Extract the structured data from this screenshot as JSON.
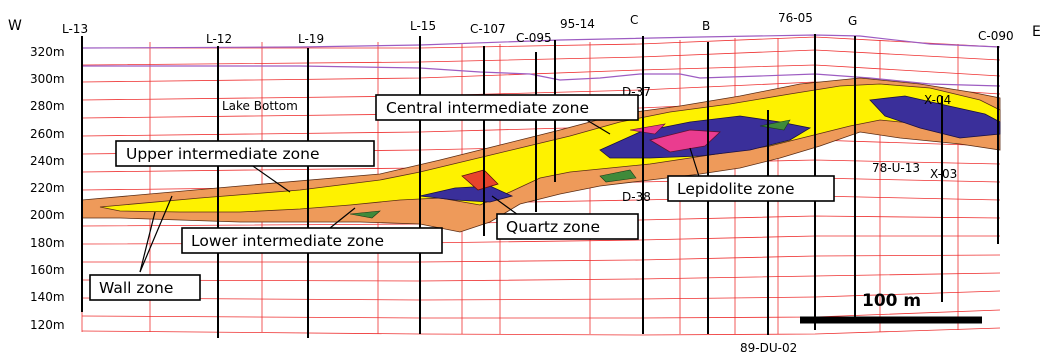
{
  "directions": {
    "west": "W",
    "east": "E"
  },
  "elevations": [
    "320m",
    "300m",
    "280m",
    "260m",
    "240m",
    "220m",
    "200m",
    "180m",
    "160m",
    "140m",
    "120m"
  ],
  "drillholes": [
    {
      "label": "L-13"
    },
    {
      "label": "L-12"
    },
    {
      "label": "L-19"
    },
    {
      "label": "L-15"
    },
    {
      "label": "C-107"
    },
    {
      "label": "C-095"
    },
    {
      "label": "95-14"
    },
    {
      "label": "C"
    },
    {
      "label": "B"
    },
    {
      "label": "76-05"
    },
    {
      "label": "G"
    },
    {
      "label": "C-090"
    }
  ],
  "minor_labels": {
    "lake_bottom": "Lake Bottom",
    "d37": "D-37",
    "d38": "D-38",
    "x04": "X-04",
    "x03": "X-03",
    "u13": "78-U-13",
    "du02": "89-DU-02"
  },
  "zones": {
    "central": "Central intermediate zone",
    "upper": "Upper intermediate zone",
    "lepidolite": "Lepidolite zone",
    "quartz": "Quartz zone",
    "lower": "Lower intermediate zone",
    "wall": "Wall zone"
  },
  "scale_bar": {
    "label": "100 m"
  },
  "colors": {
    "wall_zone": "#ee9a5a",
    "intermediate_zone": "#fef200",
    "lepidolite_zone": "#ea3c8f",
    "core_zone": "#3a2f9a",
    "quartz_zone": "#e8442c",
    "grid": "#ee3030",
    "lake_surface": "#9d5cc2",
    "green_unit": "#3f8a3a"
  }
}
